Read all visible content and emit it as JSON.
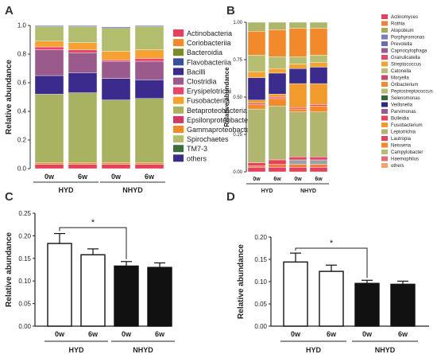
{
  "chart_data": [
    {
      "panel": "A",
      "type": "bar",
      "stacked": true,
      "ylabel": "Relative abundance",
      "ylim": [
        0,
        1.0
      ],
      "yticks": [
        "0.0",
        "0.2",
        "0.4",
        "0.6",
        "0.8",
        "1.0"
      ],
      "categories": [
        "0w",
        "6w",
        "0w",
        "6w"
      ],
      "groups": [
        {
          "label": "HYD",
          "categories": [
            "0w",
            "6w"
          ]
        },
        {
          "label": "NHYD",
          "categories": [
            "0w",
            "6w"
          ]
        }
      ],
      "series": [
        {
          "name": "Actinobacteria",
          "color": "#e6405c",
          "values": [
            0.03,
            0.03,
            0.03,
            0.03
          ]
        },
        {
          "name": "Coriobacteriia",
          "color": "#f5882a",
          "values": [
            0.01,
            0.01,
            0.01,
            0.01
          ]
        },
        {
          "name": "Bacteroidia",
          "color": "#7d8a28",
          "values": [
            0.0,
            0.0,
            0.0,
            0.0
          ]
        },
        {
          "name": "Flavobacteriia",
          "color": "#3a4f9a",
          "values": [
            0.0,
            0.0,
            0.0,
            0.0
          ]
        },
        {
          "name": "Bacilli",
          "color": "#3a2f8a",
          "values": [
            0.0,
            0.0,
            0.0,
            0.0
          ]
        },
        {
          "name": "Clostridia",
          "color": "#a05a8a",
          "values": [
            0.0,
            0.0,
            0.0,
            0.0
          ]
        },
        {
          "name": "Erysipelotrichi",
          "color": "#e8456a",
          "values": [
            0.0,
            0.0,
            0.0,
            0.0
          ]
        },
        {
          "name": "Fusobacteriia",
          "color": "#f4a12e",
          "values": [
            0.0,
            0.0,
            0.0,
            0.0
          ]
        },
        {
          "name": "Betaproteobacteria",
          "color": "#a8b260",
          "values": [
            0.48,
            0.49,
            0.44,
            0.45
          ]
        },
        {
          "name": "Epsilonproteobacteria",
          "color": "#d13a63",
          "values": [
            0.0,
            0.0,
            0.0,
            0.0
          ]
        },
        {
          "name": "Gammaproteobacteria",
          "color": "#f08a2e",
          "values": [
            0.0,
            0.0,
            0.0,
            0.0
          ]
        },
        {
          "name": "Bacilli",
          "color": "#3b2b8c",
          "values": [
            0.13,
            0.14,
            0.15,
            0.13
          ]
        },
        {
          "name": "Clostridia",
          "color": "#9a5a8c",
          "values": [
            0.18,
            0.14,
            0.12,
            0.13
          ]
        },
        {
          "name": "Erysipelotrichi",
          "color": "#e9456b",
          "values": [
            0.02,
            0.02,
            0.01,
            0.02
          ]
        },
        {
          "name": "Fusobacteriia",
          "color": "#f7a130",
          "values": [
            0.04,
            0.05,
            0.06,
            0.06
          ]
        },
        {
          "name": "Spirochaetes",
          "color": "#b3bd6e",
          "values": [
            0.1,
            0.11,
            0.16,
            0.16
          ]
        },
        {
          "name": "TM7-3",
          "color": "#3d6e3d",
          "values": [
            0.005,
            0.005,
            0.005,
            0.005
          ]
        },
        {
          "name": "others",
          "color": "#3a2d85",
          "values": [
            0.005,
            0.005,
            0.005,
            0.005
          ]
        }
      ],
      "legend": [
        {
          "name": "Actinobacteria",
          "color": "#e6405c"
        },
        {
          "name": "Coriobacteriia",
          "color": "#f5882a"
        },
        {
          "name": "Bacteroidia",
          "color": "#7d8a28"
        },
        {
          "name": "Flavobacteriia",
          "color": "#3a4f9a"
        },
        {
          "name": "Bacilli",
          "color": "#3b2b8c"
        },
        {
          "name": "Clostridia",
          "color": "#9a5a8c"
        },
        {
          "name": "Erysipelotrichi",
          "color": "#e9456b"
        },
        {
          "name": "Fusobacteriia",
          "color": "#f7a130"
        },
        {
          "name": "Betaproteobacteria",
          "color": "#a8b260"
        },
        {
          "name": "Epsilonproteobacteria",
          "color": "#d13a63"
        },
        {
          "name": "Gammaproteobacteria",
          "color": "#f08a2e"
        },
        {
          "name": "Spirochaetes",
          "color": "#b3bd6e"
        },
        {
          "name": "TM7-3",
          "color": "#3d6e3d"
        },
        {
          "name": "others",
          "color": "#3a2d85"
        }
      ]
    },
    {
      "panel": "B",
      "type": "bar",
      "stacked": true,
      "ylabel": "Relative abundance",
      "ylim": [
        0,
        1.0
      ],
      "yticks": [
        "0.00",
        "0.25",
        "0.50",
        "0.75",
        "1.00"
      ],
      "categories": [
        "0w",
        "6w",
        "0w",
        "6w"
      ],
      "groups": [
        {
          "label": "HYD",
          "categories": [
            "0w",
            "6w"
          ]
        },
        {
          "label": "NHYD",
          "categories": [
            "0w",
            "6w"
          ]
        }
      ],
      "series": [
        {
          "name": "Actinomyces",
          "color": "#e6405c",
          "values": [
            0.03,
            0.03,
            0.03,
            0.03
          ]
        },
        {
          "name": "Rothia",
          "color": "#f07f3a",
          "values": [
            0.01,
            0.02,
            0.02,
            0.02
          ]
        },
        {
          "name": "Atopobium",
          "color": "#9aa0a8",
          "values": [
            0.0,
            0.0,
            0.03,
            0.03
          ]
        },
        {
          "name": "Leptotrichia",
          "color": "#e9405e",
          "values": [
            0.02,
            0.03,
            0.02,
            0.02
          ]
        },
        {
          "name": "Neisseria",
          "color": "#b0b66e",
          "values": [
            0.36,
            0.36,
            0.3,
            0.3
          ]
        },
        {
          "name": "Fusobacterium",
          "color": "#f28a2c",
          "values": [
            0.03,
            0.05,
            0.02,
            0.04
          ]
        },
        {
          "name": "Porphyromonas",
          "color": "#e9456b",
          "values": [
            0.01,
            0.01,
            0.01,
            0.01
          ]
        },
        {
          "name": "Prevotella",
          "color": "#f39a2c",
          "values": [
            0.02,
            0.02,
            0.16,
            0.14
          ]
        },
        {
          "name": "Veillonella",
          "color": "#3b2b8c",
          "values": [
            0.15,
            0.14,
            0.1,
            0.11
          ]
        },
        {
          "name": "Streptococcus",
          "color": "#f6a22e",
          "values": [
            0.04,
            0.03,
            0.03,
            0.03
          ]
        },
        {
          "name": "Haemophilus",
          "color": "#b6be72",
          "values": [
            0.11,
            0.08,
            0.05,
            0.05
          ]
        },
        {
          "name": "Campylobacter",
          "color": "#f28a2c",
          "values": [
            0.16,
            0.18,
            0.19,
            0.18
          ]
        },
        {
          "name": "others",
          "color": "#aeb66a",
          "values": [
            0.06,
            0.05,
            0.04,
            0.04
          ]
        }
      ],
      "legend": [
        {
          "name": "Actinomyces",
          "color": "#e6405c"
        },
        {
          "name": "Rothia",
          "color": "#f07f3a"
        },
        {
          "name": "Atopobium",
          "color": "#a4ad50"
        },
        {
          "name": "Porphyromonas",
          "color": "#7a7dc0"
        },
        {
          "name": "Prevotella",
          "color": "#6b6bb0"
        },
        {
          "name": "Capnocytophaga",
          "color": "#9a5a8c"
        },
        {
          "name": "Granulicatella",
          "color": "#e9456b"
        },
        {
          "name": "Streptococcus",
          "color": "#f6a22e"
        },
        {
          "name": "Catonella",
          "color": "#b6be72"
        },
        {
          "name": "Moryella",
          "color": "#c74a6a"
        },
        {
          "name": "Oribacterium",
          "color": "#f28a2c"
        },
        {
          "name": "Peptostreptococcus",
          "color": "#b3bd6e"
        },
        {
          "name": "Selenomonas",
          "color": "#2f6b3a"
        },
        {
          "name": "Veillonella",
          "color": "#2d2a7e"
        },
        {
          "name": "Parvimonas",
          "color": "#9a5a8c"
        },
        {
          "name": "Bulleidia",
          "color": "#e9405e"
        },
        {
          "name": "Fusobacterium",
          "color": "#f39a2c"
        },
        {
          "name": "Leptotrichia",
          "color": "#b0b66e"
        },
        {
          "name": "Lautropia",
          "color": "#e9405e"
        },
        {
          "name": "Neisseria",
          "color": "#f28a2c"
        },
        {
          "name": "Campylobacter",
          "color": "#b6be72"
        },
        {
          "name": "Haemophilus",
          "color": "#e06a7a"
        },
        {
          "name": "others",
          "color": "#f4a36a"
        }
      ]
    },
    {
      "panel": "C",
      "type": "bar",
      "ylabel": "Relative abundance",
      "ylim": [
        0,
        0.25
      ],
      "yticks": [
        "0.00",
        "0.05",
        "0.10",
        "0.15",
        "0.20",
        "0.25"
      ],
      "categories": [
        "0w",
        "6w",
        "0w",
        "6w"
      ],
      "groups": [
        {
          "label": "HYD",
          "categories": [
            "0w",
            "6w"
          ]
        },
        {
          "label": "NHYD",
          "categories": [
            "0w",
            "6w"
          ]
        }
      ],
      "values": [
        0.183,
        0.158,
        0.133,
        0.13
      ],
      "errors": [
        0.022,
        0.013,
        0.01,
        0.01
      ],
      "fills": [
        "white",
        "white",
        "black",
        "black"
      ],
      "significance": {
        "from": 0,
        "to": 2,
        "label": "*",
        "level": 0.218
      }
    },
    {
      "panel": "D",
      "type": "bar",
      "ylabel": "Relative abundance",
      "ylim": [
        0,
        0.2
      ],
      "yticks": [
        "0.00",
        "0.05",
        "0.10",
        "0.15",
        "0.20"
      ],
      "categories": [
        "0w",
        "6w",
        "0w",
        "6w"
      ],
      "groups": [
        {
          "label": "HYD",
          "categories": [
            "0w",
            "6w"
          ]
        },
        {
          "label": "NHYD",
          "categories": [
            "0w",
            "6w"
          ]
        }
      ],
      "values": [
        0.144,
        0.123,
        0.096,
        0.094
      ],
      "errors": [
        0.02,
        0.014,
        0.007,
        0.007
      ],
      "fills": [
        "white",
        "white",
        "black",
        "black"
      ],
      "significance": {
        "from": 0,
        "to": 2,
        "label": "*",
        "level": 0.175
      }
    }
  ],
  "panel_labels": [
    "A",
    "B",
    "C",
    "D"
  ]
}
